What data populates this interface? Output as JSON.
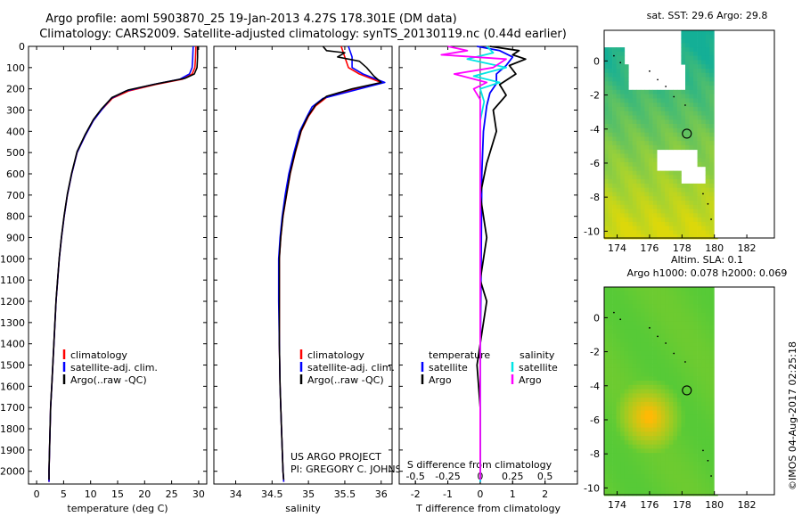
{
  "title": {
    "line1": "Argo profile: aoml 5903870_25 19-Jan-2013 4.27S 178.301E (DM data)",
    "line2": "Climatology: CARS2009. Satellite-adjusted climatology: synTS_20130119.nc (0.44d earlier)"
  },
  "colors": {
    "climatology": "#ff0000",
    "satellite": "#0000ff",
    "argo": "#000000",
    "salinity_satellite": "#00e5e5",
    "salinity_argo": "#ff00ff"
  },
  "depth_axis": {
    "ticks": [
      0,
      100,
      200,
      300,
      400,
      500,
      600,
      700,
      800,
      900,
      1000,
      1100,
      1200,
      1300,
      1400,
      1500,
      1600,
      1700,
      1800,
      1900,
      2000
    ],
    "range": [
      0,
      2060
    ]
  },
  "chart_data": [
    {
      "type": "line",
      "name": "temperature-profile",
      "xlabel": "temperature (deg C)",
      "xlim": [
        -1.5,
        31.5
      ],
      "xticks": [
        0,
        5,
        10,
        15,
        20,
        25,
        30
      ],
      "legend": {
        "position": "bottom-left",
        "entries": [
          "climatology",
          "satellite-adj. clim.",
          "Argo(..raw -QC)"
        ]
      },
      "series": [
        {
          "name": "climatology",
          "color": "#ff0000",
          "points": [
            [
              29.5,
              0
            ],
            [
              29.4,
              60
            ],
            [
              29.3,
              100
            ],
            [
              28.8,
              130
            ],
            [
              27,
              155
            ],
            [
              22,
              180
            ],
            [
              17,
              210
            ],
            [
              14,
              245
            ],
            [
              12,
              300
            ],
            [
              10.5,
              350
            ],
            [
              9,
              420
            ],
            [
              7.5,
              500
            ],
            [
              6.5,
              600
            ],
            [
              5.7,
              700
            ],
            [
              5.1,
              800
            ],
            [
              4.6,
              900
            ],
            [
              4.2,
              1000
            ],
            [
              3.9,
              1100
            ],
            [
              3.6,
              1200
            ],
            [
              3.4,
              1300
            ],
            [
              3.2,
              1400
            ],
            [
              3.0,
              1500
            ],
            [
              2.8,
              1600
            ],
            [
              2.6,
              1700
            ],
            [
              2.5,
              1800
            ],
            [
              2.4,
              1900
            ],
            [
              2.3,
              2000
            ],
            [
              2.3,
              2050
            ]
          ]
        },
        {
          "name": "satellite-adj. clim.",
          "color": "#0000ff",
          "points": [
            [
              29.0,
              0
            ],
            [
              28.9,
              60
            ],
            [
              28.8,
              100
            ],
            [
              28.3,
              130
            ],
            [
              26.5,
              155
            ],
            [
              21.5,
              180
            ],
            [
              16.5,
              210
            ],
            [
              13.8,
              245
            ],
            [
              12,
              300
            ],
            [
              10.5,
              350
            ],
            [
              9,
              420
            ],
            [
              7.5,
              500
            ],
            [
              6.5,
              600
            ],
            [
              5.7,
              700
            ],
            [
              5.1,
              800
            ],
            [
              4.6,
              900
            ],
            [
              4.2,
              1000
            ],
            [
              3.9,
              1100
            ],
            [
              3.6,
              1200
            ],
            [
              3.4,
              1300
            ],
            [
              3.2,
              1400
            ],
            [
              3.0,
              1500
            ],
            [
              2.8,
              1600
            ],
            [
              2.6,
              1700
            ],
            [
              2.5,
              1800
            ],
            [
              2.4,
              1900
            ],
            [
              2.3,
              2000
            ],
            [
              2.3,
              2050
            ]
          ]
        },
        {
          "name": "Argo(..raw -QC)",
          "color": "#000000",
          "points": [
            [
              29.8,
              0
            ],
            [
              29.8,
              50
            ],
            [
              29.7,
              100
            ],
            [
              29.2,
              130
            ],
            [
              27.5,
              150
            ],
            [
              22.5,
              175
            ],
            [
              17,
              205
            ],
            [
              14,
              240
            ],
            [
              12,
              295
            ],
            [
              10.5,
              345
            ],
            [
              9,
              415
            ],
            [
              7.5,
              495
            ],
            [
              6.5,
              595
            ],
            [
              5.7,
              695
            ],
            [
              5.1,
              795
            ],
            [
              4.6,
              895
            ],
            [
              4.2,
              995
            ],
            [
              3.9,
              1095
            ],
            [
              3.6,
              1195
            ],
            [
              3.4,
              1295
            ],
            [
              3.2,
              1395
            ],
            [
              3.0,
              1495
            ],
            [
              2.8,
              1595
            ],
            [
              2.6,
              1695
            ],
            [
              2.5,
              1795
            ],
            [
              2.4,
              1895
            ],
            [
              2.3,
              1995
            ],
            [
              2.3,
              2040
            ]
          ]
        }
      ]
    },
    {
      "type": "line",
      "name": "salinity-profile",
      "xlabel": "salinity",
      "xlim": [
        33.7,
        36.15
      ],
      "xticks": [
        34,
        34.5,
        35,
        35.5,
        36
      ],
      "legend": {
        "position": "bottom-left",
        "entries": [
          "climatology",
          "satellite-adj. clim.",
          "Argo(..raw -QC)"
        ]
      },
      "annotation": [
        "US ARGO PROJECT",
        "PI: GREGORY C. JOHNSON"
      ],
      "series": [
        {
          "name": "climatology",
          "color": "#ff0000",
          "points": [
            [
              35.45,
              0
            ],
            [
              35.5,
              50
            ],
            [
              35.55,
              100
            ],
            [
              35.7,
              130
            ],
            [
              36.0,
              170
            ],
            [
              35.6,
              205
            ],
            [
              35.25,
              240
            ],
            [
              35.1,
              280
            ],
            [
              35.0,
              330
            ],
            [
              34.9,
              400
            ],
            [
              34.82,
              500
            ],
            [
              34.75,
              600
            ],
            [
              34.7,
              700
            ],
            [
              34.65,
              800
            ],
            [
              34.62,
              900
            ],
            [
              34.6,
              1000
            ],
            [
              34.6,
              1200
            ],
            [
              34.6,
              1400
            ],
            [
              34.61,
              1600
            ],
            [
              34.63,
              1800
            ],
            [
              34.65,
              2000
            ],
            [
              34.66,
              2050
            ]
          ]
        },
        {
          "name": "satellite-adj. clim.",
          "color": "#0000ff",
          "points": [
            [
              35.55,
              0
            ],
            [
              35.6,
              50
            ],
            [
              35.6,
              100
            ],
            [
              35.75,
              130
            ],
            [
              36.05,
              170
            ],
            [
              35.65,
              205
            ],
            [
              35.2,
              245
            ],
            [
              35.05,
              285
            ],
            [
              34.98,
              330
            ],
            [
              34.88,
              400
            ],
            [
              34.8,
              500
            ],
            [
              34.73,
              600
            ],
            [
              34.68,
              700
            ],
            [
              34.64,
              800
            ],
            [
              34.61,
              900
            ],
            [
              34.59,
              1000
            ],
            [
              34.59,
              1200
            ],
            [
              34.6,
              1400
            ],
            [
              34.61,
              1600
            ],
            [
              34.63,
              1800
            ],
            [
              34.65,
              2000
            ],
            [
              34.66,
              2050
            ]
          ]
        },
        {
          "name": "Argo(..raw -QC)",
          "color": "#000000",
          "points": [
            [
              35.2,
              0
            ],
            [
              35.25,
              20
            ],
            [
              35.5,
              30
            ],
            [
              35.4,
              50
            ],
            [
              35.7,
              70
            ],
            [
              35.8,
              100
            ],
            [
              35.9,
              140
            ],
            [
              36.0,
              170
            ],
            [
              35.6,
              200
            ],
            [
              35.25,
              235
            ],
            [
              35.1,
              275
            ],
            [
              35.0,
              325
            ],
            [
              34.9,
              395
            ],
            [
              34.82,
              495
            ],
            [
              34.75,
              595
            ],
            [
              34.7,
              695
            ],
            [
              34.65,
              795
            ],
            [
              34.62,
              895
            ],
            [
              34.6,
              995
            ],
            [
              34.6,
              1200
            ],
            [
              34.6,
              1400
            ],
            [
              34.61,
              1600
            ],
            [
              34.63,
              1800
            ],
            [
              34.65,
              2000
            ],
            [
              34.66,
              2040
            ]
          ]
        }
      ]
    },
    {
      "type": "line",
      "name": "difference-profile",
      "xlabel": "T difference from climatology",
      "x2label": "S difference from climatology",
      "xlim": [
        -2.5,
        3.0
      ],
      "xticks": [
        -2,
        -1,
        0,
        1,
        2
      ],
      "x2ticks": [
        -0.5,
        -0.25,
        0,
        0.25,
        0.5
      ],
      "x2lim": [
        -0.625,
        0.75
      ],
      "legend": {
        "position": "bottom-center",
        "headers": [
          "temperature",
          "salinity"
        ],
        "entries": [
          "satellite",
          "Argo",
          "satellite",
          "Argo"
        ]
      },
      "series": [
        {
          "name": "T satellite",
          "color": "#0000ff",
          "axis": "T",
          "points": [
            [
              -0.1,
              0
            ],
            [
              0.6,
              20
            ],
            [
              1.0,
              50
            ],
            [
              0.8,
              90
            ],
            [
              0.5,
              130
            ],
            [
              0.5,
              175
            ],
            [
              0.3,
              220
            ],
            [
              0.2,
              280
            ],
            [
              0.1,
              400
            ],
            [
              0.05,
              600
            ],
            [
              0.03,
              1000
            ],
            [
              0.0,
              1500
            ],
            [
              0.0,
              2050
            ]
          ]
        },
        {
          "name": "T Argo",
          "color": "#000000",
          "axis": "T",
          "points": [
            [
              0.3,
              0
            ],
            [
              1.2,
              20
            ],
            [
              1.0,
              40
            ],
            [
              1.4,
              60
            ],
            [
              0.9,
              90
            ],
            [
              1.1,
              130
            ],
            [
              0.6,
              180
            ],
            [
              0.8,
              230
            ],
            [
              0.4,
              300
            ],
            [
              0.5,
              400
            ],
            [
              0.2,
              550
            ],
            [
              0.0,
              700
            ],
            [
              0.2,
              900
            ],
            [
              0.0,
              1100
            ],
            [
              0.2,
              1200
            ],
            [
              0.0,
              1400
            ],
            [
              -0.1,
              1500
            ],
            [
              0.0,
              1700
            ],
            [
              0.0,
              2040
            ]
          ]
        },
        {
          "name": "S satellite",
          "color": "#00e5e5",
          "axis": "S",
          "points": [
            [
              0.05,
              0
            ],
            [
              0.1,
              30
            ],
            [
              -0.1,
              60
            ],
            [
              0.2,
              100
            ],
            [
              -0.05,
              140
            ],
            [
              0.15,
              170
            ],
            [
              0.0,
              200
            ],
            [
              0.03,
              260
            ],
            [
              0.0,
              350
            ],
            [
              0.0,
              600
            ],
            [
              0.0,
              1000
            ],
            [
              0.0,
              2050
            ]
          ]
        },
        {
          "name": "S Argo",
          "color": "#ff00ff",
          "axis": "S",
          "points": [
            [
              -0.25,
              0
            ],
            [
              -0.1,
              20
            ],
            [
              -0.3,
              40
            ],
            [
              0.2,
              60
            ],
            [
              0.1,
              100
            ],
            [
              -0.2,
              130
            ],
            [
              0.05,
              170
            ],
            [
              -0.05,
              200
            ],
            [
              0.0,
              250
            ],
            [
              0.0,
              400
            ],
            [
              0.0,
              2040
            ]
          ]
        }
      ]
    },
    {
      "type": "heatmap",
      "name": "sst-map",
      "title": "sat. SST: 29.6 Argo: 29.8",
      "xlim": [
        173.2,
        183.7
      ],
      "ylim": [
        -10.4,
        1.8
      ],
      "xticks": [
        174,
        176,
        178,
        180,
        182
      ],
      "yticks": [
        0,
        -2,
        -4,
        -6,
        -8,
        -10
      ],
      "marker": {
        "lon": 178.3,
        "lat": -4.27
      }
    },
    {
      "type": "heatmap",
      "name": "sla-map",
      "title": "Altim. SLA: 0.1",
      "subtitle": "Argo h1000: 0.078 h2000: 0.069",
      "xlim": [
        173.2,
        183.7
      ],
      "ylim": [
        -10.4,
        1.8
      ],
      "xticks": [
        174,
        176,
        178,
        180,
        182
      ],
      "yticks": [
        0,
        -2,
        -4,
        -6,
        -8,
        -10
      ],
      "marker": {
        "lon": 178.3,
        "lat": -4.27
      }
    }
  ],
  "footer": {
    "stamp": "©IMOS 04-Aug-2017 02:25:18"
  }
}
